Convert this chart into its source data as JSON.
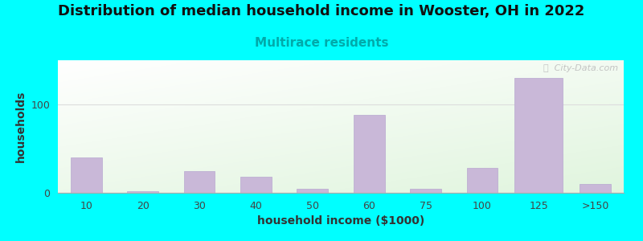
{
  "title": "Distribution of median household income in Wooster, OH in 2022",
  "subtitle": "Multirace residents",
  "xlabel": "household income ($1000)",
  "ylabel": "households",
  "background_outer": "#00FFFF",
  "bar_color": "#C9B8D8",
  "bar_edgecolor": "#b8a8d0",
  "categories": [
    "10",
    "20",
    "30",
    "40",
    "50",
    "60",
    "75",
    "100",
    "125",
    ">150"
  ],
  "values": [
    40,
    2,
    25,
    18,
    5,
    88,
    5,
    28,
    130,
    10
  ],
  "bar_widths": [
    0.55,
    0.55,
    0.55,
    0.55,
    0.55,
    0.55,
    0.55,
    0.55,
    0.85,
    0.55
  ],
  "yticks": [
    0,
    100
  ],
  "ylim": [
    0,
    150
  ],
  "title_fontsize": 13,
  "subtitle_fontsize": 11,
  "subtitle_color": "#00AAAA",
  "axis_label_fontsize": 10,
  "tick_fontsize": 9,
  "watermark_text": "ⓘ  City-Data.com",
  "watermark_color": "#bbbbbb"
}
